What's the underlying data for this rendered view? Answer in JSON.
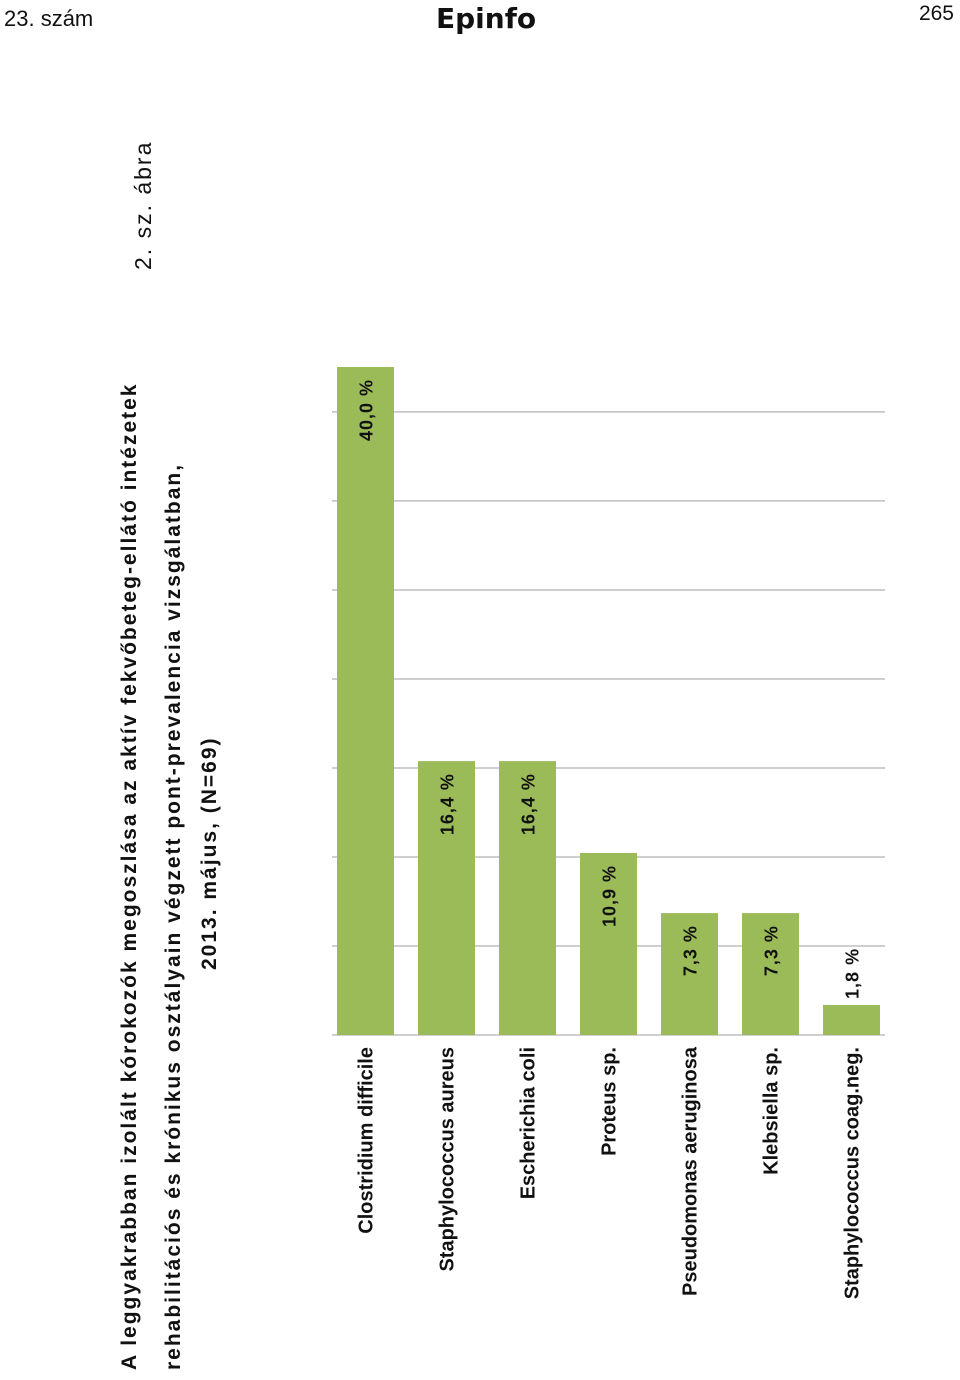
{
  "header": {
    "issue": "23. szám",
    "logo": "Epinfo",
    "page_number": "265"
  },
  "figure": {
    "label": "2. sz. ábra",
    "title_lines": [
      "A leggyakrabban izolált kórokozók megoszlása az aktív fekvőbeteg-ellátó intézetek",
      "rehabilitációs és krónikus osztályain végzett pont-prevalencia vizsgálatban,",
      "2013. május, (N=69)"
    ]
  },
  "chart_data": {
    "type": "bar",
    "orientation": "horizontal",
    "title": "A leggyakrabban izolált kórokozók megoszlása az aktív fekvőbeteg-ellátó intézetek rehabilitációs és krónikus osztályain végzett pont-prevalencia vizsgálatban, 2013. május, (N=69)",
    "categories": [
      "Clostridium difficile",
      "Staphylococcus aureus",
      "Escherichia coli",
      "Proteus sp.",
      "Pseudomonas aeruginosa",
      "Klebsiella sp.",
      "Staphylococcus coag.neg."
    ],
    "values": [
      40.0,
      16.4,
      16.4,
      10.9,
      7.3,
      7.3,
      1.8
    ],
    "value_labels": [
      "40,0 %",
      "16,4 %",
      "16,4 %",
      "10,9 %",
      "7,3 %",
      "7,3 %",
      "1,8 %"
    ],
    "unit": "%",
    "xlim": [
      0,
      40
    ],
    "grid_step": 5.33,
    "grid": true,
    "legend": "none",
    "colors": {
      "bar": "#9bbb59",
      "grid": "#bfbfbf",
      "text": "#111111"
    }
  }
}
